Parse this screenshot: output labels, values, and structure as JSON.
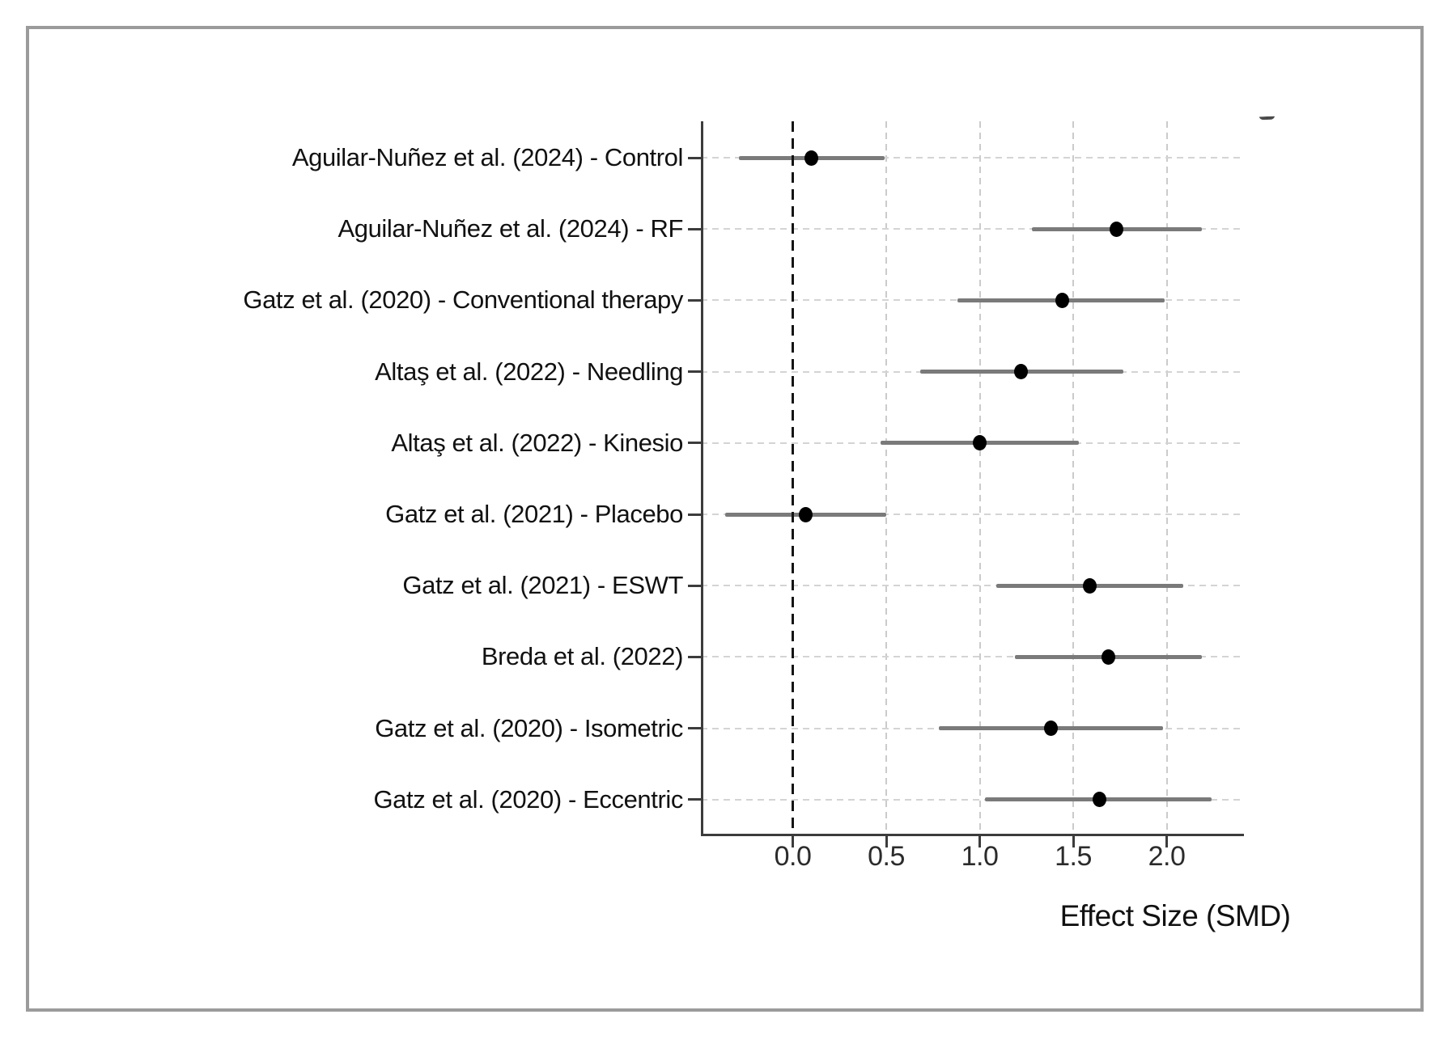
{
  "figure": {
    "background": "#ffffff",
    "frame_color": "#9b9b9b"
  },
  "chart_data": {
    "type": "scatter",
    "variant": "forest-plot",
    "title": "",
    "xlabel": "Effect Size (SMD)",
    "ylabel": "",
    "x_ticks": [
      "0.0",
      "0.5",
      "1.0",
      "1.5",
      "2.0"
    ],
    "x_tick_values": [
      0.0,
      0.5,
      1.0,
      1.5,
      2.0
    ],
    "xlim": [
      -0.49,
      2.41
    ],
    "grid": true,
    "legend": false,
    "zero_reference_line": 0.0,
    "studies": [
      {
        "label": "Aguilar-Nuñez et al. (2024) - Control",
        "effect": 0.1,
        "ci_low": -0.29,
        "ci_high": 0.49
      },
      {
        "label": "Aguilar-Nuñez et al. (2024) - RF",
        "effect": 1.73,
        "ci_low": 1.28,
        "ci_high": 2.19
      },
      {
        "label": "Gatz et al. (2020) - Conventional therapy",
        "effect": 1.44,
        "ci_low": 0.88,
        "ci_high": 1.99
      },
      {
        "label": "Altaş et al. (2022) - Needling",
        "effect": 1.22,
        "ci_low": 0.68,
        "ci_high": 1.77
      },
      {
        "label": "Altaş et al. (2022) - Kinesio",
        "effect": 1.0,
        "ci_low": 0.47,
        "ci_high": 1.53
      },
      {
        "label": "Gatz et al. (2021) - Placebo",
        "effect": 0.07,
        "ci_low": -0.36,
        "ci_high": 0.5
      },
      {
        "label": "Gatz et al. (2021) - ESWT",
        "effect": 1.59,
        "ci_low": 1.09,
        "ci_high": 2.09
      },
      {
        "label": "Breda et al. (2022)",
        "effect": 1.69,
        "ci_low": 1.19,
        "ci_high": 2.19
      },
      {
        "label": "Gatz et al. (2020) - Isometric",
        "effect": 1.38,
        "ci_low": 0.78,
        "ci_high": 1.98
      },
      {
        "label": "Gatz et al. (2020) - Eccentric",
        "effect": 1.64,
        "ci_low": 1.03,
        "ci_high": 2.24
      }
    ],
    "colors": {
      "point": "#000000",
      "ci_line": "#7a7a7a",
      "grid": "#cccccc",
      "zero_line": "#141414",
      "spine": "#3c3c3c",
      "text": "#111111"
    }
  }
}
